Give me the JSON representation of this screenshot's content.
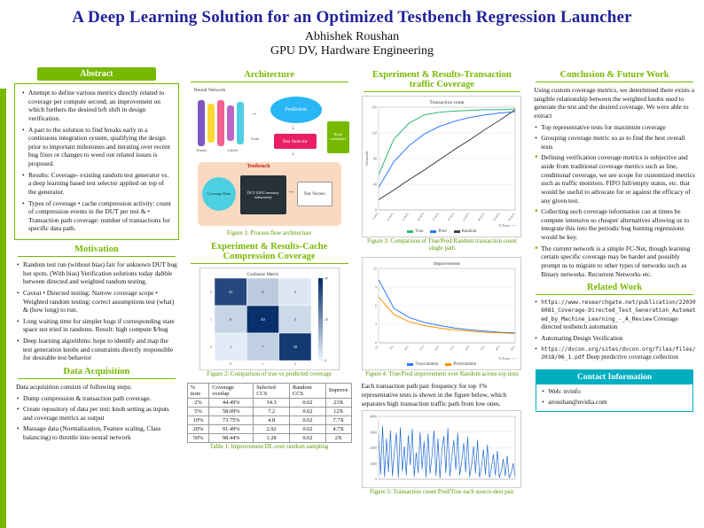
{
  "colors": {
    "green": "#76b900",
    "navy": "#22229a",
    "teal": "#00aec0"
  },
  "header": {
    "title": "A Deep Learning Solution for an Optimized Testbench Regression Launcher",
    "author": "Abhishek Roushan",
    "affiliation": "GPU DV, Hardware Engineering"
  },
  "abstract": {
    "title": "Abstract",
    "bullets": [
      "Attempt to define various metrics directly related to coverage per compute second; an improvement on which furthers the desired left shift in design verification.",
      "A part to the solution to find breaks early in a continuous integration system, qualifying the design prior to important milestones and iterating over recent bug fixes or changes to weed out related issues is proposed.",
      "Results: Coverage- existing random test generator vs. a deep learning based test selector applied on top of the generator.",
      "Types of coverage • cache compression activity: count of compression events in the DUT per test & • Transaction path coverage: number of transactions for specific data path."
    ]
  },
  "motivation": {
    "title": "Motivation",
    "bullets": [
      "Random test run (without bias) fair for unknown DUT bug hot spots. (With bias) Verification solutions today dabble between directed and weighted random testing.",
      "Caveat • Directed testing: Narrow coverage scope • Weighted random testing: correct assumptions test (what) & (how long) to run.",
      "Long waiting time for simpler bugs if corresponding state space not tried in randoms. Result: high compute $/bug",
      "Deep learning algorithms: hope to identify and map the test generation knobs and constraints directly responsible for desirable test behavior"
    ]
  },
  "data_acquisition": {
    "title": "Data Acquisition",
    "intro": "Data acquisition consists of following steps:",
    "bullets": [
      "Dump compression & transaction path coverage.",
      "Create repository of data per test: knob setting as inputs and coverage metrics as output",
      "Massage data (Normalization, Feature scaling, Class balancing) to throttle into neural network"
    ]
  },
  "architecture": {
    "title": "Architecture",
    "figure_caption": "Figure 1: Process flow architecture",
    "diagram": {
      "neural_network_label": "Neural Network",
      "knobs_label": "Knobs",
      "labels_label": "Labels",
      "train_label": "Train",
      "prediction_label": "Prediction",
      "test_selector_label": "Test Selector",
      "knob_constraints_label": "Knob constraints",
      "testbench_label": "Testbench",
      "dut_label": "DUT (GPU memory subsystem)",
      "test_vectors_label": "Test Vectors",
      "coverage_data_label": "Coverage Data"
    }
  },
  "cache_results": {
    "title": "Experiment & Results-Cache Compression Coverage",
    "figure_caption": "Figure 2: Comparison of true vs predicted coverage",
    "table": {
      "caption": "Table 1: Improvement DL over random sampling",
      "headers": [
        "% tests",
        "Coverage overlap",
        "Selected CCS",
        "Random CCS",
        "Improve"
      ],
      "rows": [
        [
          "2%",
          "44.49%",
          "14.3",
          "0.62",
          "23X"
        ],
        [
          "5%",
          "58.09%",
          "7.2",
          "0.62",
          "12X"
        ],
        [
          "10%",
          "73.75%",
          "4.8",
          "0.62",
          "7.7X"
        ],
        [
          "20%",
          "91.49%",
          "2.92",
          "0.62",
          "4.7X"
        ],
        [
          "50%",
          "98.44%",
          "1.28",
          "0.62",
          "2X"
        ]
      ]
    }
  },
  "transaction_results": {
    "title": "Experiment & Results-Transaction traffic Coverage",
    "fig3_caption": "Figure 3: Comparison of True/Pred/Random transaction count single path",
    "fig4_caption": "Figure 4: True/Pred improvement over Random across top tests",
    "paragraph": "Each transaction path pair frequency for top 1% representative tests is shown in the figure below, which separates high transaction traffic path from low ones.",
    "fig5_caption": "Figure 5: Transaction count Pred/True each source-dest pair"
  },
  "conclusion": {
    "title": "Conclusion & Future Work",
    "intro": "Using custom coverage metrics, we determined there exists a tangible relationship between the weighted knobs used to generate the test and the desired coverage. We were able to extract",
    "bullets": [
      "Top representative tests for maximum coverage",
      "Grouping coverage metric so as to find the best overall tests",
      "Defining verification coverage metrics is subjective and aside from traditional coverage metrics such as line, conditional coverage, we see scope for customized metrics such as traffic monitors. FIFO full/empty status, etc. that would be useful to advocate for or against the efficacy of any given test.",
      "Collecting such coverage information can at times be compute intensive so cheaper alternatives allowing us to integrate this into the periodic bug hunting regressions would be key.",
      "The current network is a simple FC-Net, though learning certain specific coverage may be harder and possibly prompt us to migrate to other types of networks such as Binary networks. Recurrent Networks etc."
    ]
  },
  "related_work": {
    "title": "Related Work",
    "items": [
      {
        "url": "https://www.researchgate.net/publication/220306081_Coverage-Directed_Test_Generation_Automated_by_Machine_Learning_-_A_Review",
        "text": "Coverage directed testbench automation"
      },
      {
        "url": "",
        "text": "Automating Design Verification"
      },
      {
        "url": "https://dvcon.org/sites/dvcon.org/files/files/2018/06_1.pdf",
        "text": "Deep predictive coverage collection"
      }
    ]
  },
  "contact": {
    "title": "Contact Information",
    "items": [
      "Web: nvinfo",
      "aroushan@nvidia.com"
    ]
  },
  "chart_data": [
    {
      "type": "heatmap",
      "title": "Confusion Matrix",
      "matrix": [
        [
          35,
          8,
          2
        ],
        [
          6,
          40,
          5
        ],
        [
          1,
          7,
          38
        ]
      ],
      "row_labels": [
        "0",
        "1",
        "2"
      ],
      "col_labels": [
        "0",
        "1",
        "2"
      ],
      "colorbar": {
        "min": 0,
        "max": 40
      },
      "palette": {
        "low": "#e8f1fb",
        "high": "#08306b"
      }
    },
    {
      "type": "line",
      "title": "Transaction count",
      "ylabel": "Thousands",
      "xlabel": "%Tests -->",
      "x": [
        "5.00%",
        "10.00%",
        "15.00%",
        "20.00%",
        "25.00%",
        "30.00%",
        "35.00%",
        "40.00%",
        "45.00%",
        "50.00%"
      ],
      "series": [
        {
          "name": "True",
          "color": "#2eb872",
          "values": [
            55,
            110,
            135,
            148,
            152,
            154,
            155,
            156,
            156,
            157
          ]
        },
        {
          "name": "Pred",
          "color": "#2979ff",
          "values": [
            35,
            75,
            100,
            118,
            130,
            138,
            144,
            148,
            151,
            153
          ]
        },
        {
          "name": "Random",
          "color": "#37474f",
          "values": [
            16,
            31,
            47,
            62,
            78,
            94,
            109,
            125,
            140,
            156
          ]
        }
      ],
      "ylim": [
        0,
        160
      ],
      "legend": "bottom"
    },
    {
      "type": "line",
      "title": "Improvement",
      "xlabel": "%Tests -->",
      "x": [
        "1%",
        "5%",
        "10%",
        "15%",
        "20%",
        "25%",
        "30%",
        "35%",
        "40%",
        "45%"
      ],
      "series": [
        {
          "name": "True/random",
          "color": "#2979ff",
          "values": [
            10.2,
            5.6,
            4.1,
            3.3,
            2.8,
            2.4,
            2.1,
            1.9,
            1.7,
            1.6
          ]
        },
        {
          "name": "Pred/random",
          "color": "#ff8f00",
          "values": [
            7.4,
            4.6,
            3.4,
            2.8,
            2.4,
            2.1,
            1.9,
            1.7,
            1.6,
            1.5
          ]
        }
      ],
      "ylim": [
        0,
        12
      ],
      "legend": "bottom"
    },
    {
      "type": "line",
      "title": "",
      "hide_x_labels": true,
      "series": [
        {
          "name": "Transactions",
          "color": "#1e6bd6",
          "values": [
            2900,
            300,
            3400,
            150,
            2600,
            450,
            3100,
            200,
            1800,
            2950,
            100,
            3300,
            500,
            2100,
            250,
            2800,
            900,
            3200,
            150,
            1700,
            400,
            3000,
            650,
            2400,
            120,
            2900,
            350,
            1500,
            3100,
            220,
            2600,
            80,
            1900,
            2750,
            400,
            3250,
            180,
            1400,
            2500,
            600,
            2950,
            250,
            1100,
            2300,
            450,
            2700,
            150,
            900,
            2100,
            380,
            2500,
            120,
            800,
            1900,
            300,
            2200,
            100,
            700,
            1600,
            250,
            1800,
            90,
            500,
            1300,
            200,
            1500,
            80,
            400,
            1000,
            150
          ]
        }
      ],
      "ylim": [
        0,
        4000
      ]
    }
  ]
}
